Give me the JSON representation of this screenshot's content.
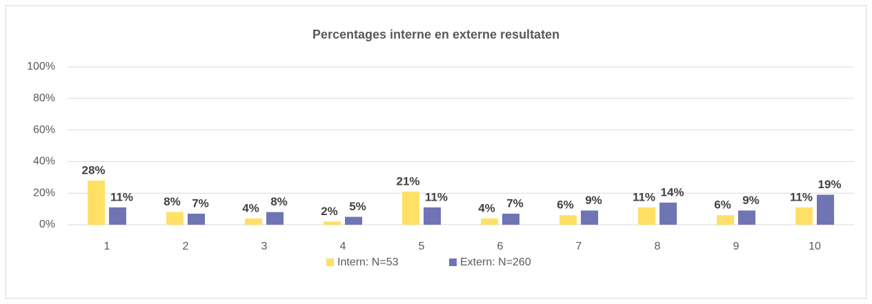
{
  "chart_data": {
    "type": "bar",
    "title": "Percentages interne en externe resultaten",
    "categories": [
      "1",
      "2",
      "3",
      "4",
      "5",
      "6",
      "7",
      "8",
      "9",
      "10"
    ],
    "series": [
      {
        "name": "Intern: N=53",
        "color": "#ffe066",
        "values": [
          28,
          8,
          4,
          2,
          21,
          4,
          6,
          11,
          6,
          11
        ],
        "value_labels": [
          "28%",
          "8%",
          "4%",
          "2%",
          "21%",
          "4%",
          "6%",
          "11%",
          "6%",
          "11%"
        ]
      },
      {
        "name": "Extern: N=260",
        "color": "#6f74b4",
        "values": [
          11,
          7,
          8,
          5,
          11,
          7,
          9,
          14,
          9,
          19
        ],
        "value_labels": [
          "11%",
          "7%",
          "8%",
          "5%",
          "11%",
          "7%",
          "9%",
          "14%",
          "9%",
          "19%"
        ]
      }
    ],
    "ylim": [
      0,
      100
    ],
    "yticks": [
      {
        "value": 0,
        "label": "0%"
      },
      {
        "value": 20,
        "label": "20%"
      },
      {
        "value": 40,
        "label": "40%"
      },
      {
        "value": 60,
        "label": "60%"
      },
      {
        "value": 80,
        "label": "80%"
      },
      {
        "value": 100,
        "label": "100%"
      }
    ],
    "grid": true,
    "legend": "bottom"
  }
}
